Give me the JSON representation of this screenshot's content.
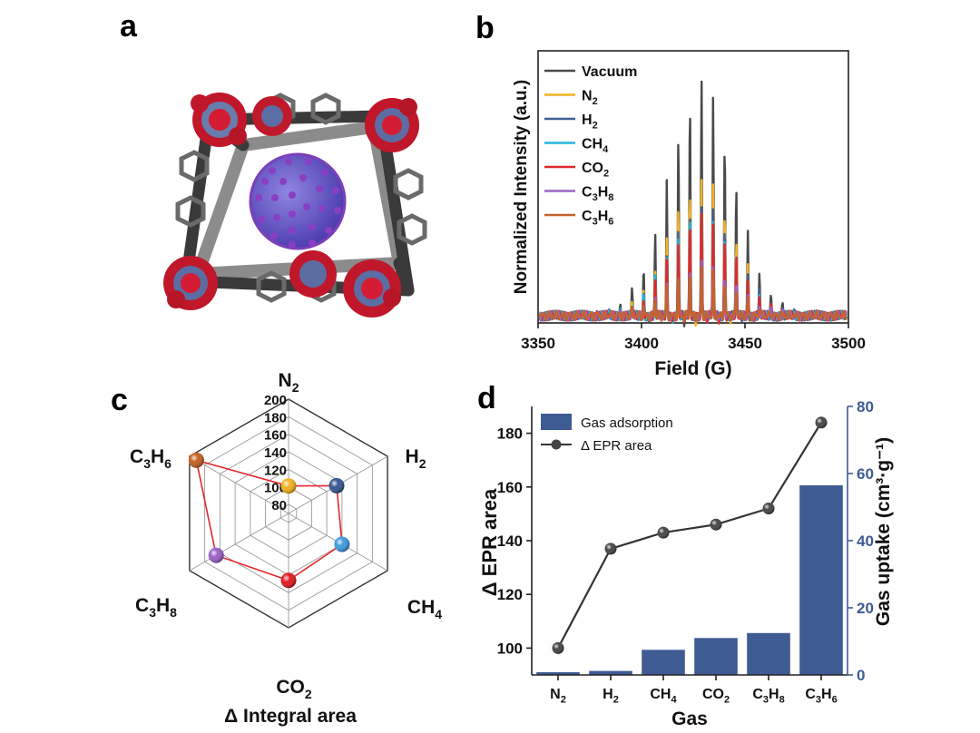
{
  "panels": {
    "a": "a",
    "b": "b",
    "c": "c",
    "d": "d"
  },
  "chart_data": [
    {
      "panel": "a",
      "type": "other",
      "description_free": true
    },
    {
      "panel": "b",
      "type": "line",
      "xlabel": "Field (G)",
      "ylabel": "Normalized Intensity (a.u.)",
      "xlim": [
        3350,
        3500
      ],
      "xticks": [
        3350,
        3400,
        3450,
        3500
      ],
      "legend_position": "top-left",
      "center": 3429,
      "spacing": 5.6,
      "peak_sigma": 10.5,
      "series": [
        {
          "name": "Vacuum",
          "base": "Vacuum",
          "sub": "",
          "color": "#4a4a4a",
          "peak": 0.95
        },
        {
          "name": "N2",
          "base": "N",
          "sub": "2",
          "color": "#f2b324",
          "peak": 0.55
        },
        {
          "name": "H2",
          "base": "H",
          "sub": "2",
          "color": "#3e5f96",
          "peak": 0.46
        },
        {
          "name": "CH4",
          "base": "CH",
          "sub": "4",
          "color": "#27b3dd",
          "peak": 0.42
        },
        {
          "name": "CO2",
          "base": "CO",
          "sub": "2",
          "color": "#de2a2a",
          "peak": 0.4
        },
        {
          "name": "C3H8",
          "base": "C",
          "sub": "3",
          "base2": "H",
          "sub2": "8",
          "color": "#9a63c7",
          "peak": 0.22
        },
        {
          "name": "C3H6",
          "base": "C",
          "sub": "3",
          "base2": "H",
          "sub2": "6",
          "color": "#c4632c",
          "peak": 0.19
        }
      ]
    },
    {
      "panel": "c",
      "type": "radar",
      "title": "Δ Integral area",
      "rlim": [
        80,
        200
      ],
      "rticks": [
        80,
        100,
        120,
        140,
        160,
        180,
        200
      ],
      "axes": [
        {
          "name": "N2",
          "base": "N",
          "sub": "2",
          "value": 101,
          "color": "#f5b21e"
        },
        {
          "name": "H2",
          "base": "H",
          "sub": "2",
          "value": 133,
          "color": "#35558f"
        },
        {
          "name": "CH4",
          "base": "CH",
          "sub": "4",
          "value": 140,
          "color": "#3d99de"
        },
        {
          "name": "CO2",
          "base": "CO",
          "sub": "2",
          "value": 146,
          "color": "#e0191e"
        },
        {
          "name": "C3H8",
          "base": "C",
          "sub": "3",
          "base2": "H",
          "sub2": "8",
          "value": 165,
          "color": "#9a5ec7"
        },
        {
          "name": "C3H6",
          "base": "C",
          "sub": "3",
          "base2": "H",
          "sub2": "6",
          "value": 191,
          "color": "#c6601f"
        }
      ]
    },
    {
      "panel": "d",
      "type": "bar+line",
      "xlabel": "Gas",
      "ylabel_left": "Δ EPR area",
      "ylabel_right": "Gas uptake (cm³·g⁻¹)",
      "ylim_left": [
        90,
        190
      ],
      "yticks_left": [
        100,
        120,
        140,
        160,
        180
      ],
      "ylim_right": [
        0,
        80
      ],
      "yticks_right": [
        0,
        20,
        40,
        60,
        80
      ],
      "categories": [
        {
          "name": "N2",
          "base": "N",
          "sub": "2"
        },
        {
          "name": "H2",
          "base": "H",
          "sub": "2"
        },
        {
          "name": "CH4",
          "base": "CH",
          "sub": "4"
        },
        {
          "name": "CO2",
          "base": "CO",
          "sub": "2"
        },
        {
          "name": "C3H8",
          "base": "C",
          "sub": "3",
          "base2": "H",
          "sub2": "8"
        },
        {
          "name": "C3H6",
          "base": "C",
          "sub": "3",
          "base2": "H",
          "sub2": "6"
        }
      ],
      "bar_series": {
        "name": "Gas adsorption",
        "color": "#3e5b93",
        "values": [
          0.8,
          1.2,
          7.5,
          11,
          12.5,
          56.5
        ]
      },
      "line_series": {
        "name": "Δ EPR area",
        "color": "#333333",
        "values": [
          100,
          137,
          143,
          146,
          152,
          184
        ]
      },
      "legend_position": "top-left"
    }
  ]
}
